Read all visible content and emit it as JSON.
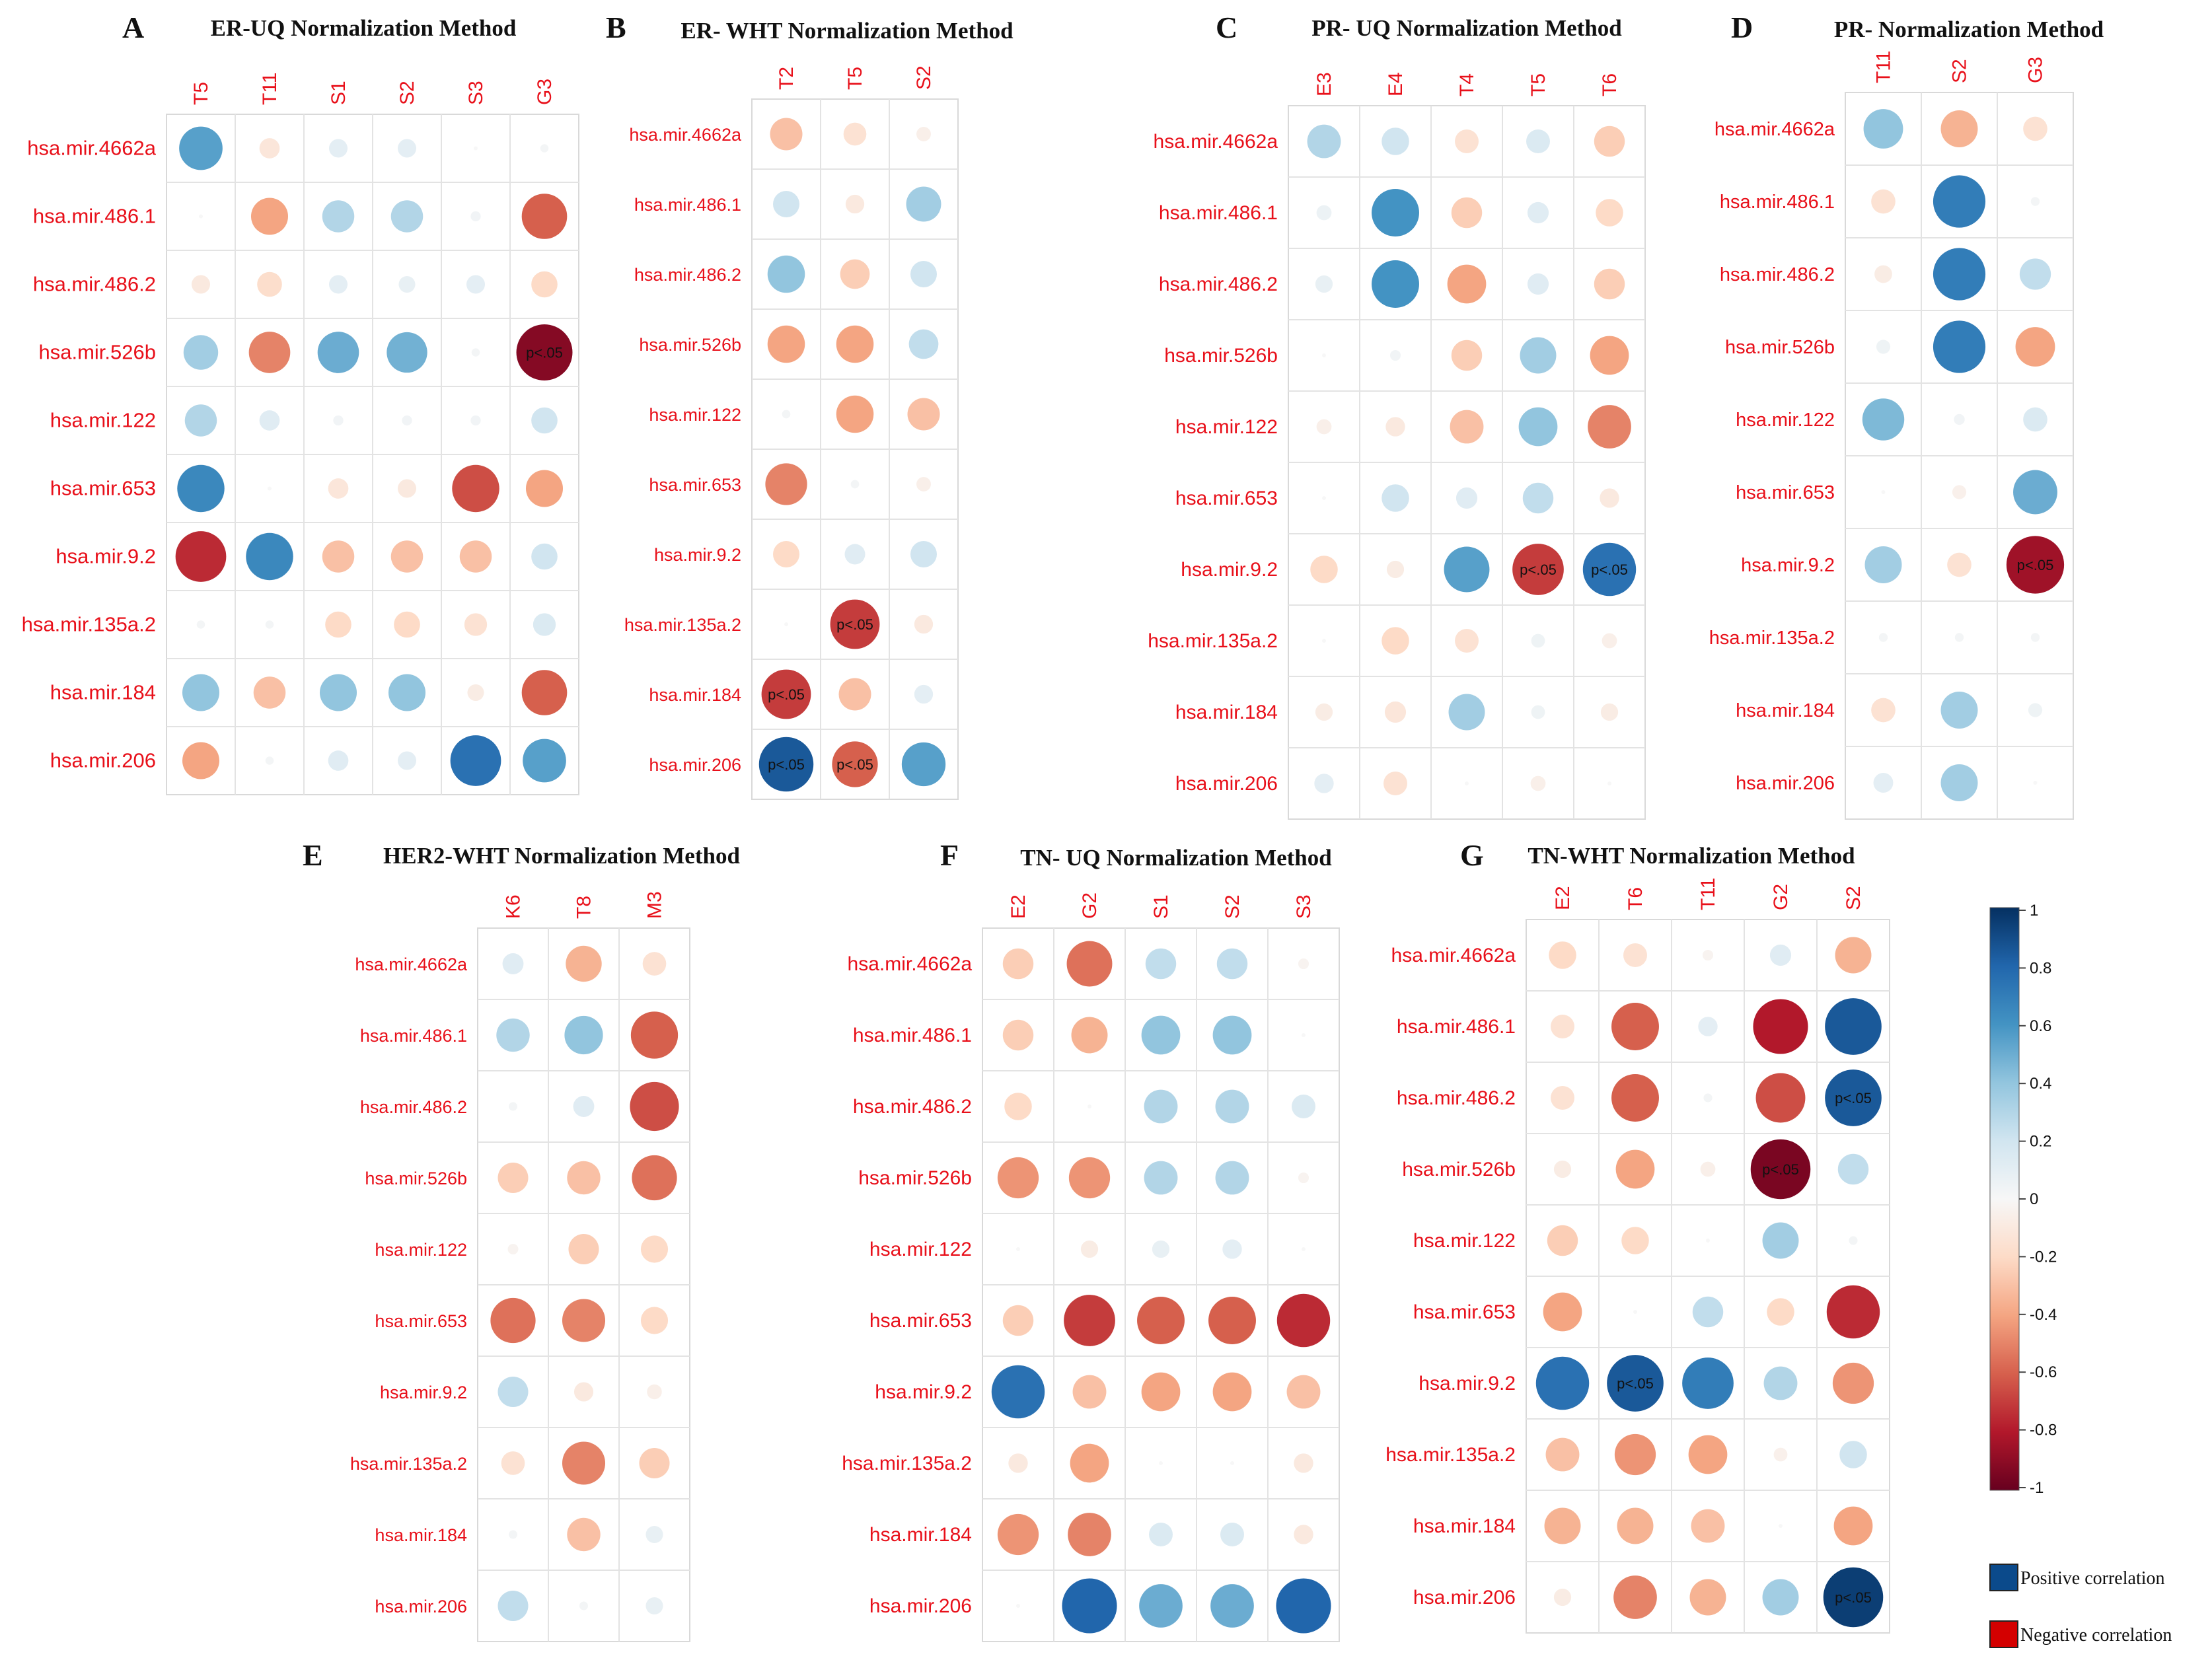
{
  "figure": {
    "legend": {
      "colorbar_ticks": [
        "1",
        "0.8",
        "0.6",
        "0.4",
        "0.2",
        "0",
        "-0.2",
        "-0.4",
        "-0.6",
        "-0.8",
        "-1"
      ],
      "positive_label": "Positive correlation",
      "negative_label": "Negative correlation",
      "positive_color": "#0b4a8b",
      "negative_color": "#d40000"
    },
    "sig_label": "p<.05",
    "colors": {
      "pos_strong": "#053061",
      "neutral": "#f7f7f7",
      "neg_strong": "#67001f",
      "row_label": "#e8101a"
    }
  },
  "chart_data": [
    {
      "type": "heatmap",
      "panel": "A",
      "title": "ER-UQ Normalization Method",
      "columns": [
        "T5",
        "T11",
        "S1",
        "S2",
        "S3",
        "G3"
      ],
      "rows": [
        "hsa.mir.4662a",
        "hsa.mir.486.1",
        "hsa.mir.486.2",
        "hsa.mir.526b",
        "hsa.mir.122",
        "hsa.mir.653",
        "hsa.mir.9.2",
        "hsa.mir.135a.2",
        "hsa.mir.184",
        "hsa.mir.206"
      ],
      "values": [
        [
          0.55,
          -0.12,
          0.1,
          0.1,
          0.0,
          0.02
        ],
        [
          0.0,
          -0.4,
          0.3,
          0.3,
          0.03,
          -0.6
        ],
        [
          -0.1,
          -0.18,
          0.1,
          0.08,
          0.1,
          -0.2
        ],
        [
          0.35,
          -0.5,
          0.5,
          0.48,
          0.02,
          -0.92
        ],
        [
          0.3,
          0.12,
          0.03,
          0.03,
          0.03,
          0.2
        ],
        [
          0.65,
          0.0,
          -0.12,
          -0.1,
          -0.65,
          -0.4
        ],
        [
          -0.75,
          0.65,
          -0.3,
          -0.3,
          -0.3,
          0.2
        ],
        [
          0.02,
          0.02,
          -0.2,
          -0.2,
          -0.15,
          0.15
        ],
        [
          0.4,
          -0.3,
          0.4,
          0.4,
          -0.08,
          -0.6
        ],
        [
          -0.4,
          0.02,
          0.12,
          0.1,
          0.75,
          0.55
        ]
      ],
      "significant": [
        [
          3,
          5
        ]
      ]
    },
    {
      "type": "heatmap",
      "panel": "B",
      "title": "ER- WHT Normalization Method",
      "columns": [
        "T2",
        "T5",
        "S2"
      ],
      "rows": [
        "hsa.mir.4662a",
        "hsa.mir.486.1",
        "hsa.mir.486.2",
        "hsa.mir.526b",
        "hsa.mir.122",
        "hsa.mir.653",
        "hsa.mir.9.2",
        "hsa.mir.135a.2",
        "hsa.mir.184",
        "hsa.mir.206"
      ],
      "values": [
        [
          -0.3,
          -0.15,
          -0.06
        ],
        [
          0.2,
          -0.1,
          0.35
        ],
        [
          0.4,
          -0.25,
          0.2
        ],
        [
          -0.4,
          -0.4,
          0.25
        ],
        [
          0.02,
          -0.4,
          -0.3
        ],
        [
          -0.5,
          0.02,
          -0.06
        ],
        [
          -0.2,
          0.12,
          0.2
        ],
        [
          0.0,
          -0.7,
          -0.1
        ],
        [
          -0.7,
          -0.3,
          0.1
        ],
        [
          0.85,
          -0.6,
          0.55
        ]
      ],
      "significant": [
        [
          7,
          1
        ],
        [
          8,
          0
        ],
        [
          9,
          0
        ],
        [
          9,
          1
        ]
      ]
    },
    {
      "type": "heatmap",
      "panel": "C",
      "title": "PR- UQ Normalization Method",
      "columns": [
        "E3",
        "E4",
        "T4",
        "T5",
        "T6"
      ],
      "rows": [
        "hsa.mir.4662a",
        "hsa.mir.486.1",
        "hsa.mir.486.2",
        "hsa.mir.526b",
        "hsa.mir.122",
        "hsa.mir.653",
        "hsa.mir.9.2",
        "hsa.mir.135a.2",
        "hsa.mir.184",
        "hsa.mir.206"
      ],
      "values": [
        [
          0.3,
          0.2,
          -0.15,
          0.15,
          -0.25
        ],
        [
          0.06,
          0.6,
          -0.25,
          0.12,
          -0.2
        ],
        [
          0.08,
          0.6,
          -0.4,
          0.12,
          -0.25
        ],
        [
          0.0,
          0.03,
          -0.25,
          0.35,
          -0.4
        ],
        [
          -0.06,
          -0.1,
          -0.3,
          0.4,
          -0.5
        ],
        [
          0.0,
          0.2,
          0.12,
          0.25,
          -0.1
        ],
        [
          -0.2,
          -0.08,
          0.55,
          -0.7,
          0.75
        ],
        [
          0.0,
          -0.2,
          -0.15,
          0.05,
          -0.06
        ],
        [
          -0.08,
          -0.12,
          0.35,
          0.05,
          -0.08
        ],
        [
          0.1,
          -0.15,
          0.0,
          -0.06,
          0.0
        ]
      ],
      "significant": [
        [
          6,
          3
        ],
        [
          6,
          4
        ]
      ]
    },
    {
      "type": "heatmap",
      "panel": "D",
      "title": "PR- Normalization Method",
      "columns": [
        "T11",
        "S2",
        "G3"
      ],
      "rows": [
        "hsa.mir.4662a",
        "hsa.mir.486.1",
        "hsa.mir.486.2",
        "hsa.mir.526b",
        "hsa.mir.122",
        "hsa.mir.653",
        "hsa.mir.9.2",
        "hsa.mir.135a.2",
        "hsa.mir.184",
        "hsa.mir.206"
      ],
      "values": [
        [
          0.4,
          -0.35,
          -0.15
        ],
        [
          -0.15,
          0.7,
          0.02
        ],
        [
          -0.08,
          0.7,
          0.25
        ],
        [
          0.05,
          0.7,
          -0.4
        ],
        [
          0.45,
          0.03,
          0.15
        ],
        [
          0.0,
          -0.05,
          0.5
        ],
        [
          0.35,
          -0.15,
          -0.85
        ],
        [
          0.02,
          0.02,
          0.02
        ],
        [
          -0.15,
          0.35,
          0.05
        ],
        [
          0.1,
          0.35,
          0.0
        ]
      ],
      "significant": [
        [
          6,
          2
        ]
      ]
    },
    {
      "type": "heatmap",
      "panel": "E",
      "title": "HER2-WHT Normalization Method",
      "columns": [
        "K6",
        "T8",
        "M3"
      ],
      "rows": [
        "hsa.mir.4662a",
        "hsa.mir.486.1",
        "hsa.mir.486.2",
        "hsa.mir.526b",
        "hsa.mir.122",
        "hsa.mir.653",
        "hsa.mir.9.2",
        "hsa.mir.135a.2",
        "hsa.mir.184",
        "hsa.mir.206"
      ],
      "values": [
        [
          0.12,
          -0.35,
          -0.15
        ],
        [
          0.3,
          0.4,
          -0.6
        ],
        [
          0.02,
          0.12,
          -0.65
        ],
        [
          -0.25,
          -0.3,
          -0.55
        ],
        [
          -0.03,
          -0.25,
          -0.2
        ],
        [
          -0.55,
          -0.5,
          -0.2
        ],
        [
          0.25,
          -0.1,
          -0.06
        ],
        [
          -0.15,
          -0.5,
          -0.25
        ],
        [
          0.02,
          -0.3,
          0.08
        ],
        [
          0.25,
          0.02,
          0.08
        ]
      ],
      "significant": []
    },
    {
      "type": "heatmap",
      "panel": "F",
      "title": "TN- UQ Normalization Method",
      "columns": [
        "E2",
        "G2",
        "S1",
        "S2",
        "S3"
      ],
      "rows": [
        "hsa.mir.4662a",
        "hsa.mir.486.1",
        "hsa.mir.486.2",
        "hsa.mir.526b",
        "hsa.mir.122",
        "hsa.mir.653",
        "hsa.mir.9.2",
        "hsa.mir.135a.2",
        "hsa.mir.184",
        "hsa.mir.206"
      ],
      "values": [
        [
          -0.25,
          -0.55,
          0.25,
          0.25,
          -0.03
        ],
        [
          -0.25,
          -0.35,
          0.4,
          0.4,
          0.0
        ],
        [
          -0.2,
          0.0,
          0.3,
          0.3,
          0.15
        ],
        [
          -0.45,
          -0.45,
          0.3,
          0.3,
          -0.03
        ],
        [
          0.0,
          -0.08,
          0.08,
          0.1,
          0.0
        ],
        [
          -0.25,
          -0.7,
          -0.6,
          -0.6,
          -0.75
        ],
        [
          0.75,
          -0.3,
          -0.4,
          -0.4,
          -0.3
        ],
        [
          -0.1,
          -0.4,
          0.0,
          0.0,
          -0.1
        ],
        [
          -0.45,
          -0.5,
          0.15,
          0.15,
          -0.1
        ],
        [
          0.0,
          0.8,
          0.5,
          0.5,
          0.8
        ]
      ],
      "significant": []
    },
    {
      "type": "heatmap",
      "panel": "G",
      "title": "TN-WHT Normalization Method",
      "columns": [
        "E2",
        "T6",
        "T11",
        "G2",
        "S2"
      ],
      "rows": [
        "hsa.mir.4662a",
        "hsa.mir.486.1",
        "hsa.mir.486.2",
        "hsa.mir.526b",
        "hsa.mir.122",
        "hsa.mir.653",
        "hsa.mir.9.2",
        "hsa.mir.135a.2",
        "hsa.mir.184",
        "hsa.mir.206"
      ],
      "values": [
        [
          -0.2,
          -0.15,
          -0.03,
          0.12,
          -0.35
        ],
        [
          -0.15,
          -0.6,
          0.1,
          -0.8,
          0.85
        ],
        [
          -0.15,
          -0.6,
          0.02,
          -0.65,
          0.85
        ],
        [
          -0.08,
          -0.4,
          -0.06,
          -0.95,
          0.25
        ],
        [
          -0.25,
          -0.2,
          0.0,
          0.35,
          0.02
        ],
        [
          -0.4,
          0.0,
          0.25,
          -0.2,
          -0.75
        ],
        [
          0.75,
          0.85,
          0.7,
          0.3,
          -0.45
        ],
        [
          -0.3,
          -0.45,
          -0.4,
          -0.05,
          0.2
        ],
        [
          -0.35,
          -0.35,
          -0.3,
          0.0,
          -0.4
        ],
        [
          -0.08,
          -0.5,
          -0.35,
          0.35,
          0.95
        ]
      ],
      "significant": [
        [
          2,
          4
        ],
        [
          3,
          3
        ],
        [
          6,
          1
        ],
        [
          9,
          4
        ]
      ]
    }
  ]
}
